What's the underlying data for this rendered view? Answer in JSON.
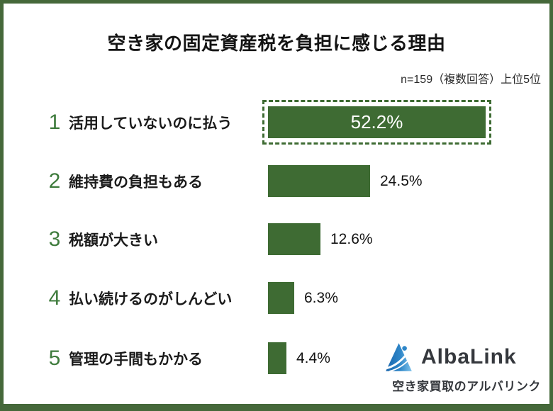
{
  "title": "空き家の固定資産税を負担に感じる理由",
  "note": "n=159（複数回答）上位5位",
  "chart_data": {
    "type": "bar",
    "orientation": "horizontal",
    "title": "空き家の固定資産税を負担に感じる理由",
    "note": "n=159（複数回答）上位5位",
    "sample_size": 159,
    "ranks": [
      "1",
      "2",
      "3",
      "4",
      "5"
    ],
    "categories": [
      "活用していないのに払う",
      "維持費の負担もある",
      "税額が大きい",
      "払い続けるのがしんどい",
      "管理の手間もかかる"
    ],
    "values": [
      52.2,
      24.5,
      12.6,
      6.3,
      4.4
    ],
    "value_labels": [
      "52.2%",
      "24.5%",
      "12.6%",
      "6.3%",
      "4.4%"
    ],
    "highlight_index": 0,
    "xlim": [
      0,
      55
    ],
    "legend": "none",
    "grid": false,
    "colors": {
      "bar": "#3e6b33",
      "rank_number": "#3e7b3c",
      "frame_border": "#45683a",
      "highlight_dashed_border": "#3e6b33",
      "value_inside_text": "#ffffff",
      "value_outside_text": "#141414"
    }
  },
  "logo": {
    "name": "AlbaLink",
    "tagline": "空き家買取のアルバリンク",
    "icon": "mountain-triangle-icon",
    "colors": {
      "icon_dark_blue": "#1a66ad",
      "icon_light_blue": "#7fc2ea",
      "text": "#35383d"
    }
  }
}
